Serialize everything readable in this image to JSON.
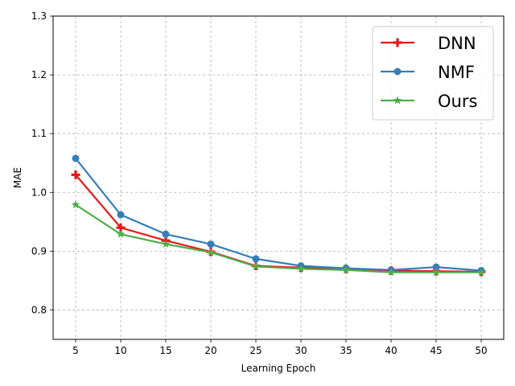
{
  "chart_data": {
    "type": "line",
    "title": "",
    "xlabel": "Learning Epoch",
    "ylabel": "MAE",
    "x": [
      5,
      10,
      15,
      20,
      25,
      30,
      35,
      40,
      45,
      50
    ],
    "xlim": [
      2.5,
      52.5
    ],
    "ylim": [
      0.75,
      1.3
    ],
    "xticks": [
      "5",
      "10",
      "15",
      "20",
      "25",
      "30",
      "35",
      "40",
      "45",
      "50"
    ],
    "yticks": [
      "0.8",
      "0.9",
      "1.0",
      "1.1",
      "1.2",
      "1.3"
    ],
    "grid": true,
    "legend_position": "top-right",
    "series": [
      {
        "name": "DNN",
        "color": "#e31a1c",
        "marker": "plus",
        "values": [
          1.03,
          0.94,
          0.918,
          0.899,
          0.875,
          0.872,
          0.87,
          0.867,
          0.866,
          0.865
        ]
      },
      {
        "name": "NMF",
        "color": "#377eb8",
        "marker": "circle",
        "values": [
          1.058,
          0.962,
          0.929,
          0.912,
          0.887,
          0.875,
          0.871,
          0.868,
          0.873,
          0.867
        ]
      },
      {
        "name": "Ours",
        "color": "#4daf4a",
        "marker": "star",
        "values": [
          0.979,
          0.929,
          0.912,
          0.898,
          0.874,
          0.87,
          0.868,
          0.864,
          0.864,
          0.864
        ]
      }
    ]
  }
}
